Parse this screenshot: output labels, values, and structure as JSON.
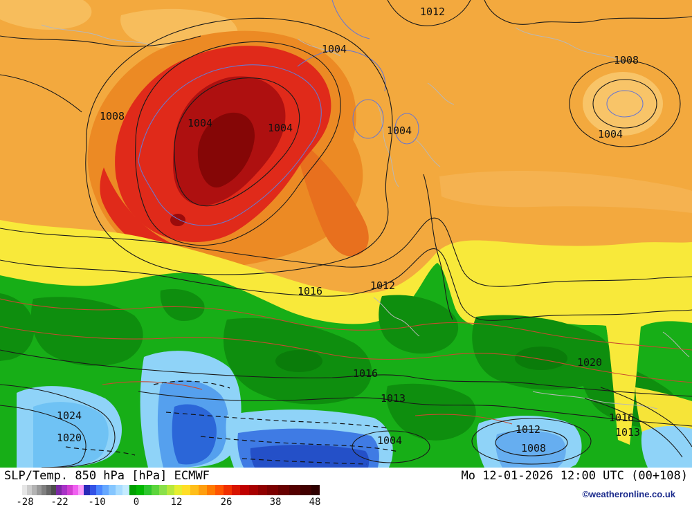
{
  "map": {
    "pressure_labels": [
      "1012",
      "1004",
      "1008",
      "1008",
      "1004",
      "1004",
      "1004",
      "1004",
      "1016",
      "1012",
      "1020",
      "1016",
      "1013",
      "1024",
      "1020",
      "1016",
      "1013",
      "1012",
      "1008",
      "1004"
    ]
  },
  "footer": {
    "title": "SLP/Temp. 850 hPa [hPa] ECMWF",
    "datetime": "Mo 12-01-2026 12:00 UTC (00+108)",
    "copyright": "©weatheronline.co.uk"
  },
  "colorbar": {
    "ticks": [
      "-28",
      "-22",
      "-10",
      "0",
      "12",
      "26",
      "38",
      "48"
    ],
    "segments": [
      {
        "color": "#FFFFFF",
        "w": 7
      },
      {
        "color": "#E6E6E6",
        "w": 7
      },
      {
        "color": "#CCCCCC",
        "w": 7
      },
      {
        "color": "#B3B3B3",
        "w": 7
      },
      {
        "color": "#999999",
        "w": 7
      },
      {
        "color": "#7F7F7F",
        "w": 7
      },
      {
        "color": "#666666",
        "w": 7
      },
      {
        "color": "#4D4D4D",
        "w": 7
      },
      {
        "color": "#7A29A3",
        "w": 8
      },
      {
        "color": "#A832C6",
        "w": 8
      },
      {
        "color": "#D13FD1",
        "w": 8
      },
      {
        "color": "#F060F0",
        "w": 8
      },
      {
        "color": "#FA9CFA",
        "w": 8
      },
      {
        "color": "#2929B8",
        "w": 9
      },
      {
        "color": "#3352E6",
        "w": 9
      },
      {
        "color": "#4A85FF",
        "w": 9
      },
      {
        "color": "#66A8FF",
        "w": 9
      },
      {
        "color": "#85C6FF",
        "w": 10
      },
      {
        "color": "#A8DCFF",
        "w": 10
      },
      {
        "color": "#C4EBFF",
        "w": 10
      },
      {
        "color": "#00A000",
        "w": 10
      },
      {
        "color": "#00B800",
        "w": 11
      },
      {
        "color": "#2EC62E",
        "w": 11
      },
      {
        "color": "#5CD53C",
        "w": 11
      },
      {
        "color": "#8AE04A",
        "w": 11
      },
      {
        "color": "#B8E83C",
        "w": 11
      },
      {
        "color": "#E6EE30",
        "w": 11
      },
      {
        "color": "#FFDE26",
        "w": 12
      },
      {
        "color": "#FFBE1A",
        "w": 12
      },
      {
        "color": "#FF9E0E",
        "w": 12
      },
      {
        "color": "#FF7A00",
        "w": 12
      },
      {
        "color": "#FF5500",
        "w": 12
      },
      {
        "color": "#F03000",
        "w": 12
      },
      {
        "color": "#D81400",
        "w": 12
      },
      {
        "color": "#C00000",
        "w": 13
      },
      {
        "color": "#A80000",
        "w": 13
      },
      {
        "color": "#900000",
        "w": 13
      },
      {
        "color": "#7C0000",
        "w": 16
      },
      {
        "color": "#680000",
        "w": 16
      },
      {
        "color": "#540000",
        "w": 16
      },
      {
        "color": "#420000",
        "w": 16
      },
      {
        "color": "#2E0000",
        "w": 12
      }
    ]
  },
  "palette": {
    "warm_base": "#F3A93E",
    "hot_red": "#E02A1A",
    "hot_core": "#850606",
    "yellow_band": "#F8E93A",
    "green_base": "#17AE17",
    "cold_blue": "#8FD3F8",
    "deep_blue": "#2450C8"
  }
}
